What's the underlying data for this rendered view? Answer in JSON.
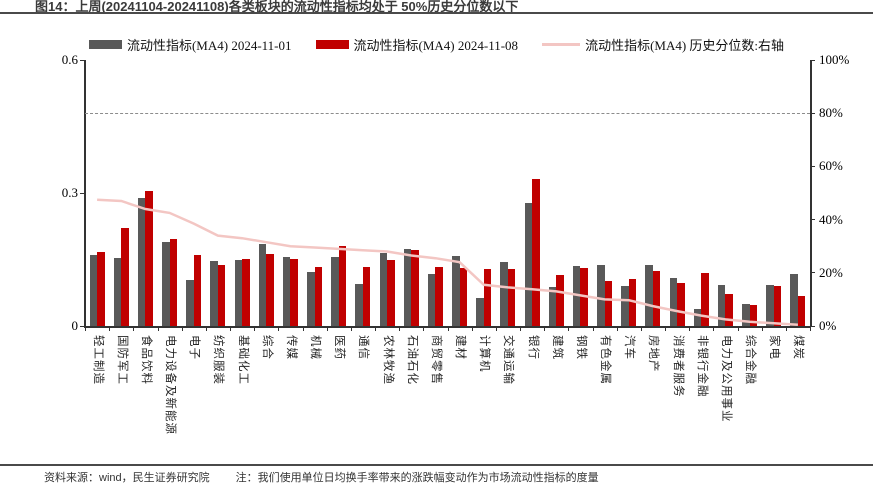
{
  "header": {
    "title": "图14：上周(20241104-20241108)各类板块的流动性指标均处于 50%历史分位数以下"
  },
  "legend": {
    "items": [
      {
        "label": "流动性指标(MA4) 2024-11-01",
        "marker": "bar",
        "color": "#595959"
      },
      {
        "label": "流动性指标(MA4) 2024-11-08",
        "marker": "bar",
        "color": "#c00000"
      },
      {
        "label": "流动性指标(MA4) 历史分位数:右轴",
        "marker": "line",
        "color": "#f3c6c3"
      }
    ]
  },
  "chart_data": {
    "type": "bar",
    "title": "图14：上周(20241104-20241108)各类板块的流动性指标均处于 50%历史分位数以下",
    "categories": [
      "轻工制造",
      "国防军工",
      "食品饮料",
      "电力设备及新能源",
      "电子",
      "纺织服装",
      "基础化工",
      "综合",
      "传媒",
      "机械",
      "医药",
      "通信",
      "农林牧渔",
      "石油石化",
      "商贸零售",
      "建材",
      "计算机",
      "交通运输",
      "银行",
      "建筑",
      "钢铁",
      "有色金属",
      "汽车",
      "房地产",
      "消费者服务",
      "非银行金融",
      "电力及公用事业",
      "综合金融",
      "家电",
      "煤炭"
    ],
    "series": [
      {
        "name": "流动性指标(MA4) 2024-11-01",
        "type": "bar",
        "axis": "left",
        "color": "#595959",
        "values": [
          0.161,
          0.154,
          0.289,
          0.19,
          0.104,
          0.147,
          0.15,
          0.186,
          0.156,
          0.122,
          0.156,
          0.095,
          0.164,
          0.174,
          0.117,
          0.158,
          0.063,
          0.145,
          0.278,
          0.089,
          0.136,
          0.138,
          0.09,
          0.137,
          0.108,
          0.038,
          0.092,
          0.049,
          0.093,
          0.117
        ]
      },
      {
        "name": "流动性指标(MA4) 2024-11-08",
        "type": "bar",
        "axis": "left",
        "color": "#c00000",
        "values": [
          0.168,
          0.221,
          0.305,
          0.197,
          0.161,
          0.138,
          0.151,
          0.162,
          0.152,
          0.132,
          0.181,
          0.132,
          0.148,
          0.171,
          0.134,
          0.131,
          0.129,
          0.128,
          0.332,
          0.116,
          0.131,
          0.101,
          0.107,
          0.124,
          0.096,
          0.12,
          0.073,
          0.048,
          0.09,
          0.068
        ]
      },
      {
        "name": "流动性指标(MA4) 历史分位数:右轴",
        "type": "line",
        "axis": "right",
        "color": "#f3c6c3",
        "values": [
          47.5,
          47,
          44,
          42.5,
          38.5,
          34,
          33,
          31.5,
          30,
          29.5,
          29,
          28.5,
          28,
          26.5,
          25.5,
          24,
          15.5,
          14.5,
          13.8,
          13,
          11.5,
          10,
          9.7,
          7.5,
          5.6,
          3.9,
          2.5,
          1.6,
          1.0,
          0.5
        ]
      }
    ],
    "left_axis": {
      "min": 0,
      "max": 0.6,
      "ticks": [
        "0",
        "0.3",
        "0.6"
      ],
      "tick_values": [
        0,
        0.3,
        0.6
      ]
    },
    "right_axis": {
      "min": 0,
      "max": 100,
      "ticks": [
        "0%",
        "20%",
        "40%",
        "60%",
        "80%",
        "100%"
      ],
      "tick_values": [
        0,
        20,
        40,
        60,
        80,
        100
      ]
    },
    "reference_line_right_pct": 80,
    "grid": false,
    "legend_position": "top"
  },
  "footer": {
    "source": "资料来源：wind，民生证券研究院",
    "note": "注：我们使用单位日均换手率带来的涨跌幅变动作为市场流动性指标的度量"
  },
  "colors": {
    "bar_old": "#595959",
    "bar_new": "#c00000",
    "percentile_line": "#f3c6c3",
    "axis": "#333333",
    "dashed_reference": "#8c8c8c",
    "title_rule": "#4a4a4a"
  }
}
